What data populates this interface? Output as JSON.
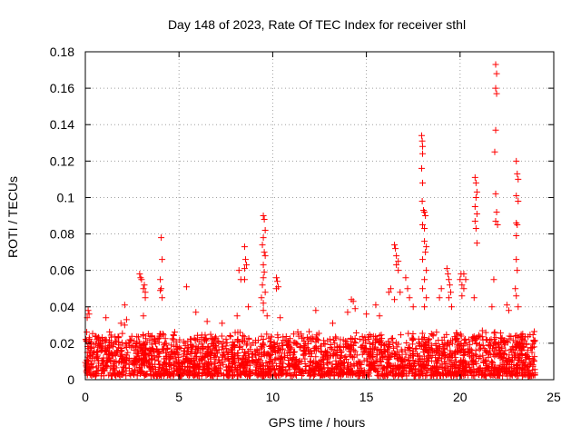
{
  "chart_data": {
    "type": "scatter",
    "title": "Day 148 of 2023, Rate Of TEC Index for receiver sthl",
    "xlabel": "GPS time / hours",
    "ylabel": "ROTI / TECUs",
    "xlim": [
      0,
      25
    ],
    "ylim": [
      0,
      0.18
    ],
    "xticks": [
      0,
      5,
      10,
      15,
      20,
      25
    ],
    "yticks": [
      0,
      0.02,
      0.04,
      0.06,
      0.08,
      0.1,
      0.12,
      0.14,
      0.16,
      0.18
    ],
    "xtick_labels": [
      "0",
      "5",
      "10",
      "15",
      "20",
      "25"
    ],
    "ytick_labels": [
      "0",
      "0.02",
      "0.04",
      "0.06",
      "0.08",
      "0.1",
      "0.12",
      "0.14",
      "0.16",
      "0.18"
    ],
    "grid": true,
    "marker": "plus",
    "series": [
      {
        "name": "ROTI",
        "color": "#ff0000",
        "background_band": {
          "x_range": [
            0,
            24
          ],
          "y_typical": [
            0.002,
            0.025
          ]
        },
        "points": [
          [
            0.15,
            0.038
          ],
          [
            0.2,
            0.036
          ],
          [
            0.1,
            0.034
          ],
          [
            1.1,
            0.034
          ],
          [
            1.9,
            0.031
          ],
          [
            2.2,
            0.033
          ],
          [
            2.1,
            0.03
          ],
          [
            2.1,
            0.041
          ],
          [
            2.9,
            0.058
          ],
          [
            2.95,
            0.056
          ],
          [
            3.0,
            0.055
          ],
          [
            3.1,
            0.05
          ],
          [
            3.2,
            0.048
          ],
          [
            3.2,
            0.045
          ],
          [
            3.15,
            0.052
          ],
          [
            3.1,
            0.035
          ],
          [
            4.05,
            0.078
          ],
          [
            4.1,
            0.066
          ],
          [
            4.0,
            0.055
          ],
          [
            4.05,
            0.05
          ],
          [
            4.1,
            0.045
          ],
          [
            4.0,
            0.049
          ],
          [
            5.4,
            0.051
          ],
          [
            5.9,
            0.037
          ],
          [
            6.5,
            0.032
          ],
          [
            7.3,
            0.031
          ],
          [
            8.1,
            0.035
          ],
          [
            8.2,
            0.06
          ],
          [
            8.3,
            0.055
          ],
          [
            8.5,
            0.073
          ],
          [
            8.55,
            0.066
          ],
          [
            8.6,
            0.063
          ],
          [
            8.5,
            0.061
          ],
          [
            8.5,
            0.055
          ],
          [
            8.7,
            0.04
          ],
          [
            9.5,
            0.09
          ],
          [
            9.55,
            0.088
          ],
          [
            9.6,
            0.082
          ],
          [
            9.5,
            0.078
          ],
          [
            9.45,
            0.074
          ],
          [
            9.55,
            0.07
          ],
          [
            9.6,
            0.068
          ],
          [
            9.5,
            0.063
          ],
          [
            9.55,
            0.059
          ],
          [
            9.5,
            0.056
          ],
          [
            9.45,
            0.052
          ],
          [
            9.6,
            0.048
          ],
          [
            9.4,
            0.045
          ],
          [
            9.5,
            0.042
          ],
          [
            9.5,
            0.038
          ],
          [
            9.7,
            0.035
          ],
          [
            10.2,
            0.056
          ],
          [
            10.25,
            0.054
          ],
          [
            10.3,
            0.051
          ],
          [
            10.2,
            0.05
          ],
          [
            10.4,
            0.034
          ],
          [
            12.3,
            0.038
          ],
          [
            13.2,
            0.031
          ],
          [
            14.0,
            0.037
          ],
          [
            14.2,
            0.044
          ],
          [
            14.3,
            0.043
          ],
          [
            14.4,
            0.039
          ],
          [
            15.0,
            0.036
          ],
          [
            15.5,
            0.041
          ],
          [
            15.7,
            0.035
          ],
          [
            16.2,
            0.048
          ],
          [
            16.3,
            0.05
          ],
          [
            16.5,
            0.074
          ],
          [
            16.55,
            0.072
          ],
          [
            16.6,
            0.068
          ],
          [
            16.7,
            0.065
          ],
          [
            16.6,
            0.063
          ],
          [
            16.7,
            0.06
          ],
          [
            16.8,
            0.048
          ],
          [
            16.5,
            0.044
          ],
          [
            17.1,
            0.056
          ],
          [
            17.2,
            0.05
          ],
          [
            17.3,
            0.045
          ],
          [
            17.5,
            0.04
          ],
          [
            17.95,
            0.134
          ],
          [
            17.98,
            0.131
          ],
          [
            18.0,
            0.128
          ],
          [
            18.0,
            0.124
          ],
          [
            17.95,
            0.116
          ],
          [
            18.0,
            0.108
          ],
          [
            17.98,
            0.098
          ],
          [
            18.05,
            0.093
          ],
          [
            18.1,
            0.092
          ],
          [
            18.15,
            0.09
          ],
          [
            18.0,
            0.085
          ],
          [
            18.1,
            0.083
          ],
          [
            18.1,
            0.076
          ],
          [
            18.2,
            0.073
          ],
          [
            18.15,
            0.07
          ],
          [
            18.0,
            0.066
          ],
          [
            18.2,
            0.06
          ],
          [
            18.1,
            0.055
          ],
          [
            18.0,
            0.05
          ],
          [
            18.2,
            0.045
          ],
          [
            18.1,
            0.04
          ],
          [
            18.9,
            0.045
          ],
          [
            19.0,
            0.05
          ],
          [
            19.3,
            0.061
          ],
          [
            19.35,
            0.058
          ],
          [
            19.4,
            0.055
          ],
          [
            19.45,
            0.052
          ],
          [
            19.5,
            0.048
          ],
          [
            19.4,
            0.045
          ],
          [
            19.55,
            0.04
          ],
          [
            20.0,
            0.055
          ],
          [
            20.05,
            0.058
          ],
          [
            20.1,
            0.052
          ],
          [
            20.2,
            0.058
          ],
          [
            20.3,
            0.055
          ],
          [
            20.2,
            0.05
          ],
          [
            20.1,
            0.046
          ],
          [
            20.8,
            0.111
          ],
          [
            20.85,
            0.108
          ],
          [
            20.9,
            0.103
          ],
          [
            20.85,
            0.1
          ],
          [
            20.8,
            0.095
          ],
          [
            20.9,
            0.091
          ],
          [
            20.8,
            0.087
          ],
          [
            20.85,
            0.083
          ],
          [
            20.9,
            0.075
          ],
          [
            20.75,
            0.045
          ],
          [
            21.9,
            0.173
          ],
          [
            21.95,
            0.168
          ],
          [
            21.9,
            0.16
          ],
          [
            21.95,
            0.157
          ],
          [
            21.9,
            0.137
          ],
          [
            21.85,
            0.125
          ],
          [
            21.9,
            0.102
          ],
          [
            21.95,
            0.092
          ],
          [
            21.9,
            0.087
          ],
          [
            22.0,
            0.085
          ],
          [
            21.8,
            0.055
          ],
          [
            21.7,
            0.04
          ],
          [
            22.5,
            0.041
          ],
          [
            22.6,
            0.038
          ],
          [
            23.0,
            0.12
          ],
          [
            23.05,
            0.113
          ],
          [
            23.1,
            0.11
          ],
          [
            23.0,
            0.101
          ],
          [
            23.1,
            0.098
          ],
          [
            23.0,
            0.086
          ],
          [
            23.05,
            0.085
          ],
          [
            23.0,
            0.079
          ],
          [
            23.0,
            0.066
          ],
          [
            23.05,
            0.06
          ],
          [
            22.95,
            0.05
          ],
          [
            23.0,
            0.046
          ],
          [
            23.1,
            0.04
          ]
        ]
      }
    ]
  }
}
